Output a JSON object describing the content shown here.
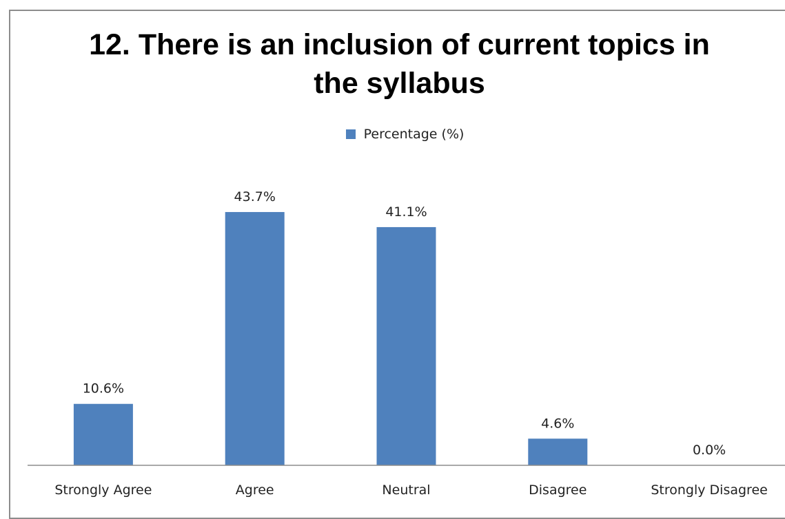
{
  "chart_data": {
    "type": "bar",
    "title": "12. There is an inclusion of current topics in the syllabus",
    "categories": [
      "Strongly Agree",
      "Agree",
      "Neutral",
      "Disagree",
      "Strongly Disagree"
    ],
    "series": [
      {
        "name": "Percentage (%)",
        "values": [
          10.6,
          43.7,
          41.1,
          4.6,
          0.0
        ],
        "labels": [
          "10.6%",
          "43.7%",
          "41.1%",
          "4.6%",
          "0.0%"
        ]
      }
    ],
    "ylim": [
      0,
      50
    ],
    "grid": false,
    "legend_position": "top",
    "bar_color": "#4f81bd",
    "axis_color": "#8c8c8c"
  }
}
